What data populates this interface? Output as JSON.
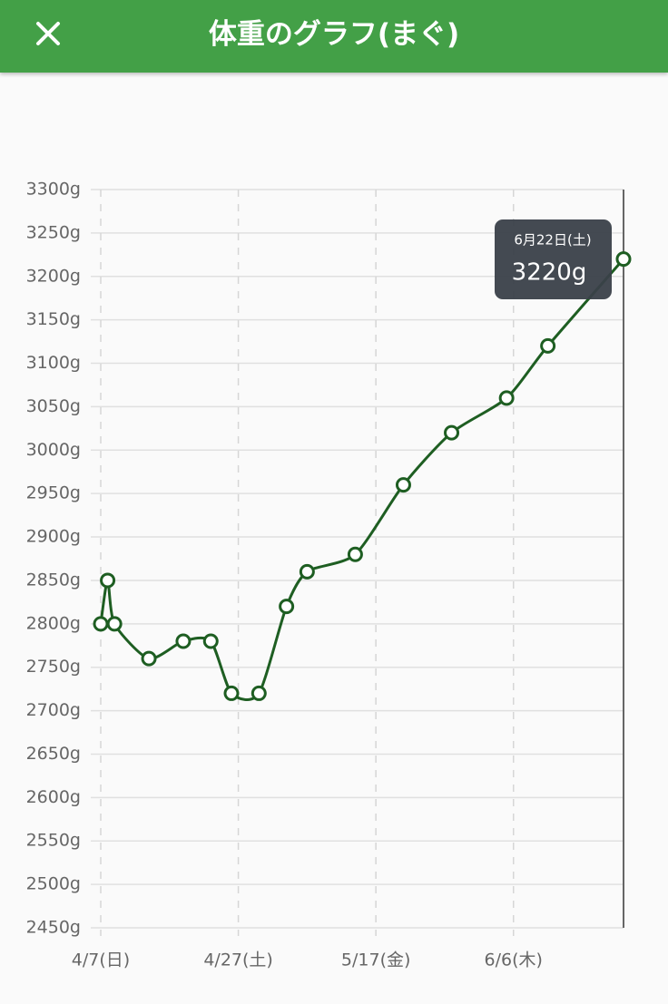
{
  "header": {
    "title": "体重のグラフ(まぐ)"
  },
  "chart_data": {
    "type": "line",
    "x": [
      "4/7",
      "4/8",
      "4/9",
      "4/14",
      "4/19",
      "4/23",
      "4/26",
      "4/30",
      "5/4",
      "5/7",
      "5/14",
      "5/21",
      "5/28",
      "6/5",
      "6/11",
      "6/22"
    ],
    "series": [
      {
        "color": "#1e5e22",
        "values": [
          2800,
          2850,
          2800,
          2760,
          2780,
          2780,
          2720,
          2720,
          2820,
          2860,
          2880,
          2960,
          3020,
          3060,
          3120,
          3220
        ]
      }
    ],
    "xlim": [
      "4/7",
      "6/22"
    ],
    "xticks": [
      {
        "value": "4/7",
        "label": "4/7(日)"
      },
      {
        "value": "4/27",
        "label": "4/27(土)"
      },
      {
        "value": "5/17",
        "label": "5/17(金)"
      },
      {
        "value": "6/6",
        "label": "6/6(木)"
      }
    ],
    "ylim": [
      2450,
      3300
    ],
    "yticks": [
      {
        "value": 2450,
        "label": "2450g"
      },
      {
        "value": 2500,
        "label": "2500g"
      },
      {
        "value": 2550,
        "label": "2550g"
      },
      {
        "value": 2600,
        "label": "2600g"
      },
      {
        "value": 2650,
        "label": "2650g"
      },
      {
        "value": 2700,
        "label": "2700g"
      },
      {
        "value": 2750,
        "label": "2750g"
      },
      {
        "value": 2800,
        "label": "2800g"
      },
      {
        "value": 2850,
        "label": "2850g"
      },
      {
        "value": 2900,
        "label": "2900g"
      },
      {
        "value": 2950,
        "label": "2950g"
      },
      {
        "value": 3000,
        "label": "3000g"
      },
      {
        "value": 3050,
        "label": "3050g"
      },
      {
        "value": 3100,
        "label": "3100g"
      },
      {
        "value": 3150,
        "label": "3150g"
      },
      {
        "value": 3200,
        "label": "3200g"
      },
      {
        "value": 3250,
        "label": "3250g"
      },
      {
        "value": 3300,
        "label": "3300g"
      }
    ],
    "grid": true,
    "tooltip": {
      "title": "6月22日(土)",
      "label": "3220g"
    }
  }
}
